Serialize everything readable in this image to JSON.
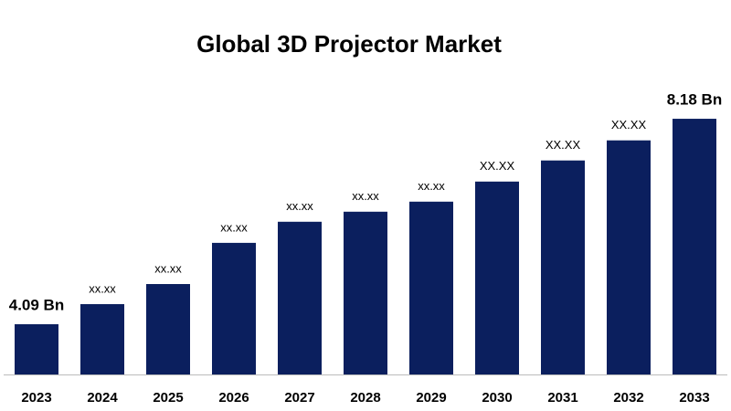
{
  "chart_data": {
    "type": "bar",
    "title": "Global 3D Projector Market",
    "categories": [
      "2023",
      "2024",
      "2025",
      "2026",
      "2027",
      "2028",
      "2029",
      "2030",
      "2031",
      "2032",
      "2033"
    ],
    "values": [
      4.09,
      4.49,
      4.89,
      5.71,
      6.13,
      6.33,
      6.53,
      6.93,
      7.35,
      7.75,
      8.18
    ],
    "value_labels": [
      "4.09 Bn",
      "xx.xx",
      "xx.xx",
      "xx.xx",
      "xx.xx",
      "xx.xx",
      "xx.xx",
      "XX.XX",
      "XX.XX",
      "XX.XX",
      "8.18 Bn"
    ],
    "color": "#0b1f5e",
    "ylim": [
      3.09,
      9.09
    ]
  }
}
